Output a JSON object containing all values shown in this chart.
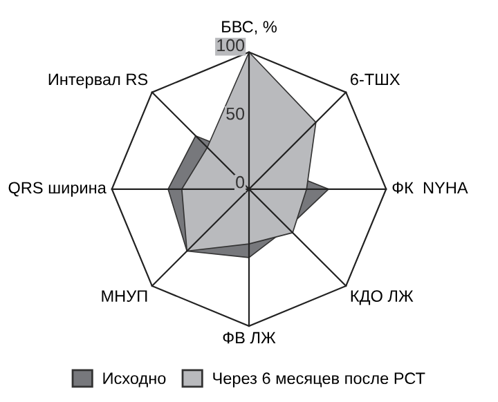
{
  "chart_data": {
    "type": "radar",
    "categories": [
      "БВС, %",
      "6-ТШХ",
      "ФК  NYHA",
      "КДО ЛЖ",
      "ФВ ЛЖ",
      "МНУП",
      "QRS ширина",
      "Интервал RS"
    ],
    "series": [
      {
        "name": "Исходно",
        "color": "#77787c",
        "values": [
          null,
          null,
          58,
          40,
          50,
          64,
          59,
          55
        ]
      },
      {
        "name": "Через 6 месяцев после РСТ",
        "color": "#b9babd",
        "values": [
          100,
          69,
          42,
          45,
          40,
          64,
          49,
          43
        ]
      }
    ],
    "ylim": [
      0,
      100
    ],
    "yticks": [
      0,
      50,
      100
    ],
    "legend": "bottom",
    "grid": false
  }
}
